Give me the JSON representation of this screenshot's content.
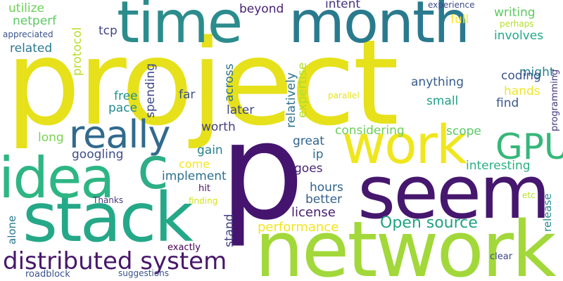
{
  "words": {
    "project": {
      "text": "project",
      "color": "#e6e11a"
    },
    "p": {
      "text": "p",
      "color": "#44146e"
    },
    "network": {
      "text": "network",
      "color": "#a2d83a"
    },
    "seem": {
      "text": "seem",
      "color": "#46176e"
    },
    "time": {
      "text": "time",
      "color": "#2c8c8c"
    },
    "month": {
      "text": "month",
      "color": "#2a7a8e"
    },
    "stack": {
      "text": "stack",
      "color": "#24a888"
    },
    "idea": {
      "text": "idea",
      "color": "#2db683"
    },
    "c": {
      "text": "c",
      "color": "#2eae86"
    },
    "work": {
      "text": "work",
      "color": "#f0e61d"
    },
    "really": {
      "text": "really",
      "color": "#316a8d"
    },
    "gpu": {
      "text": "GPU",
      "color": "#35b779"
    },
    "distributed_system": {
      "text": "distributed system",
      "color": "#481769"
    },
    "open_source": {
      "text": "Open source",
      "color": "#20a284"
    },
    "license": {
      "text": "license",
      "color": "#471b6e"
    },
    "performance": {
      "text": "performance",
      "color": "#f3e51d"
    },
    "better": {
      "text": "better",
      "color": "#35608d"
    },
    "hours": {
      "text": "hours",
      "color": "#31638e"
    },
    "goes": {
      "text": "goes",
      "color": "#482576"
    },
    "implement": {
      "text": "implement",
      "color": "#2c6f8e"
    },
    "come": {
      "text": "come",
      "color": "#f4e61e"
    },
    "gain": {
      "text": "gain",
      "color": "#287f8e"
    },
    "worth": {
      "text": "worth",
      "color": "#433e85"
    },
    "later": {
      "text": "later",
      "color": "#414487"
    },
    "far": {
      "text": "far",
      "color": "#3b518b"
    },
    "free": {
      "text": "free",
      "color": "#21918c"
    },
    "pace": {
      "text": "pace",
      "color": "#23898e"
    },
    "googling": {
      "text": "googling",
      "color": "#3e4c8a"
    },
    "long": {
      "text": "long",
      "color": "#7ad151"
    },
    "tcp": {
      "text": "tcp",
      "color": "#404588"
    },
    "beyond": {
      "text": "beyond",
      "color": "#482173"
    },
    "intent": {
      "text": "intent",
      "color": "#46337e"
    },
    "experience": {
      "text": "experience",
      "color": "#3e4a89"
    },
    "full": {
      "text": "full",
      "color": "#fde725"
    },
    "writing": {
      "text": "writing",
      "color": "#5ec962"
    },
    "perhaps": {
      "text": "perhaps",
      "color": "#b5de2b"
    },
    "involves": {
      "text": "involves",
      "color": "#22a884"
    },
    "might": {
      "text": "might",
      "color": "#26828e"
    },
    "coding": {
      "text": "coding",
      "color": "#3a548c"
    },
    "hands": {
      "text": "hands",
      "color": "#f0e525"
    },
    "find": {
      "text": "find",
      "color": "#39568c"
    },
    "anything": {
      "text": "anything",
      "color": "#365c8d"
    },
    "small": {
      "text": "small",
      "color": "#1fa188"
    },
    "scope": {
      "text": "scope",
      "color": "#58c765"
    },
    "considering": {
      "text": "considering",
      "color": "#6ccd5a"
    },
    "great": {
      "text": "great",
      "color": "#32648e"
    },
    "ip": {
      "text": "ip",
      "color": "#2e6d8e"
    },
    "interesting": {
      "text": "interesting",
      "color": "#29af7f"
    },
    "utilize": {
      "text": "utilize",
      "color": "#6ece58"
    },
    "netperf": {
      "text": "netperf",
      "color": "#5cc863"
    },
    "related": {
      "text": "related",
      "color": "#2a788e"
    },
    "appreciated": {
      "text": "appreciated",
      "color": "#3b528b"
    },
    "thanks": {
      "text": "Thanks",
      "color": "#443a83"
    },
    "hit": {
      "text": "hit",
      "color": "#471365"
    },
    "finding": {
      "text": "finding",
      "color": "#d2e21b"
    },
    "exactly": {
      "text": "exactly",
      "color": "#440154"
    },
    "suggestions": {
      "text": "suggestions",
      "color": "#3b528b"
    },
    "roadblock": {
      "text": "roadblock",
      "color": "#3b528b"
    },
    "clear": {
      "text": "clear",
      "color": "#3f4788"
    },
    "etc": {
      "text": "etc",
      "color": "#b8de29"
    },
    "parallel": {
      "text": "parallel",
      "color": "#e7e419"
    },
    "protocol": {
      "text": "protocol",
      "color": "#b8de29"
    },
    "across": {
      "text": "across",
      "color": "#2c718e"
    },
    "spending": {
      "text": "spending",
      "color": "#3f4889"
    },
    "relatively": {
      "text": "relatively",
      "color": "#2d708e"
    },
    "expertise": {
      "text": "expertise",
      "color": "#addc30"
    },
    "programming": {
      "text": "programming",
      "color": "#453781"
    },
    "release": {
      "text": "release",
      "color": "#23888e"
    },
    "alone": {
      "text": "alone",
      "color": "#2a788e"
    },
    "stand": {
      "text": "stand",
      "color": "#424086"
    }
  }
}
